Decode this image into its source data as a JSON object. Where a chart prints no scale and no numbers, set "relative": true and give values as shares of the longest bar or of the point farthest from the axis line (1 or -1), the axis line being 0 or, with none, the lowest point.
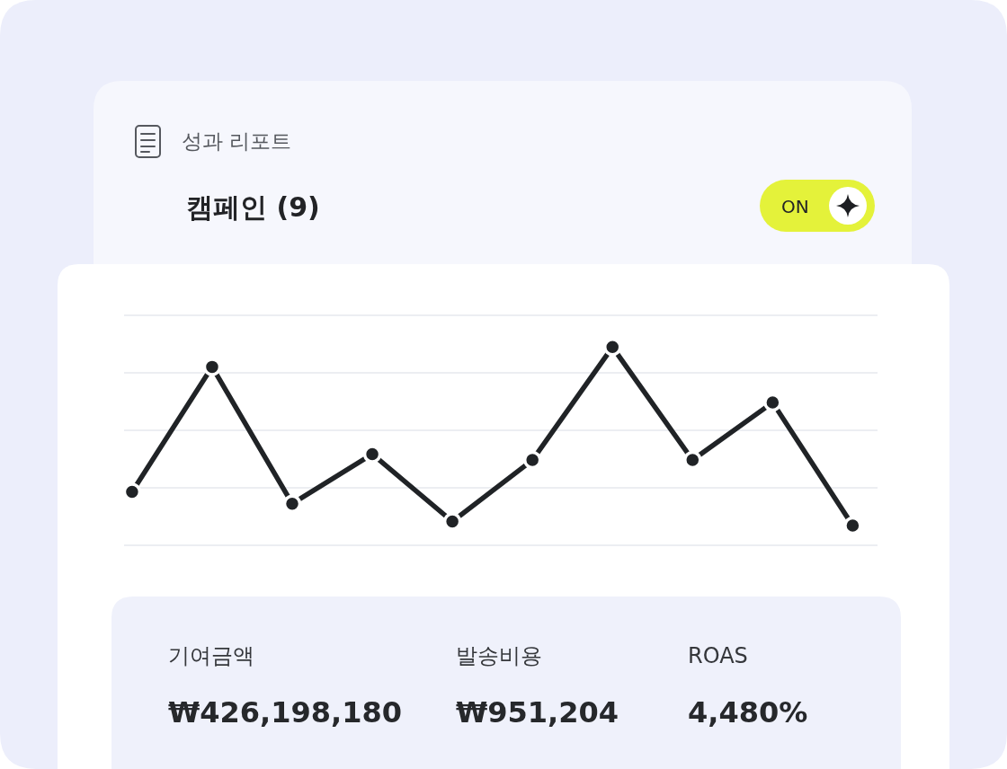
{
  "chart_data": {
    "type": "line",
    "title": "성과 리포트",
    "subtitle": "캠페인 (9)",
    "categories": [
      null,
      null,
      null,
      null,
      null,
      null,
      null,
      null,
      null,
      null
    ],
    "series": [
      {
        "color": "#202326",
        "values": [
          0.27,
          0.9,
          0.21,
          0.46,
          0.12,
          0.43,
          1,
          0.43,
          0.72,
          0.1
        ]
      }
    ],
    "relative": true,
    "grid": "y",
    "marker": "circle",
    "line_style": "solid",
    "annotations": [
      "ON",
      "기여금액",
      "₩426,198,180",
      "발송비용",
      "₩951,204",
      "ROAS",
      "4,480%"
    ]
  }
}
